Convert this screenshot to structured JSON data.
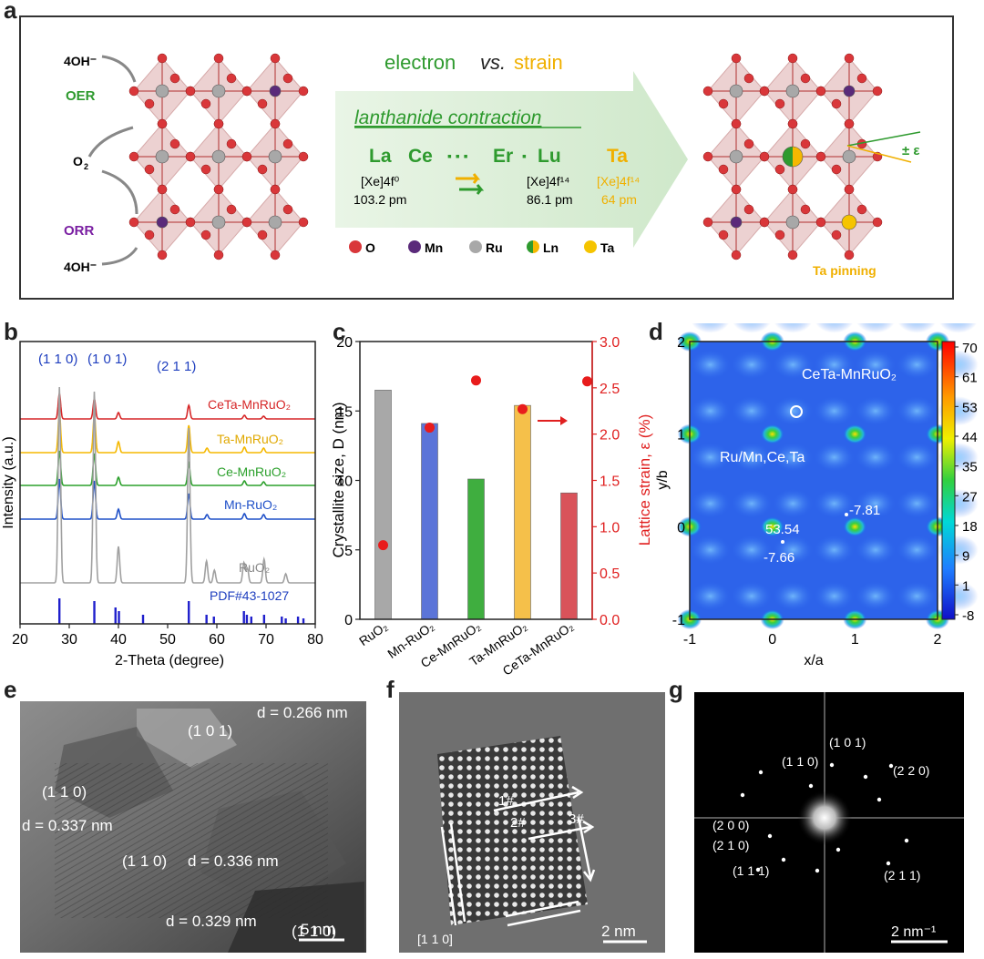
{
  "panel_labels": {
    "a": "a",
    "b": "b",
    "c": "c",
    "d": "d",
    "e": "e",
    "f": "f",
    "g": "g"
  },
  "panel_a": {
    "left_labels": {
      "oh_top": "4OH⁻",
      "oer": "OER",
      "o2": "O",
      "o2_sub": "2",
      "orr": "ORR",
      "oh_bottom": "4OH⁻"
    },
    "title_electron": "electron",
    "title_vs": "vs.",
    "title_strain": "strain",
    "contraction": "lanthanide contraction",
    "elements": {
      "la": "La",
      "ce": "Ce",
      "dots": "▪ ▪ ▪",
      "er": "Er",
      "dot2": "▪",
      "lu": "Lu",
      "ta": "Ta"
    },
    "config_la": "[Xe]4f⁰",
    "radius_la": "103.2 pm",
    "config_lu": "[Xe]4f¹⁴",
    "radius_lu": "86.1 pm",
    "config_ta": "[Xe]4f¹⁴",
    "radius_ta": "64 pm",
    "legend": [
      "O",
      "Mn",
      "Ru",
      "Ln",
      "Ta"
    ],
    "strain_label": "± ε",
    "pinning": "Ta pinning",
    "colors": {
      "green": "#2e9a2e",
      "yellow": "#f5b800",
      "purple": "#7a1fa2",
      "red_atom": "#d9373a",
      "arrow_bg": "#dcefd8"
    }
  },
  "panel_b": {
    "xlabel": "2-Theta (degree)",
    "ylabel": "Intensity (a.u.)",
    "xticks": [
      "20",
      "30",
      "40",
      "50",
      "60",
      "70",
      "80"
    ],
    "peaks": [
      "(1 1 0)",
      "(1 0 1)",
      "(2 1 1)"
    ],
    "traces": [
      {
        "name": "CeTa-MnRuO₂",
        "color": "#d62728"
      },
      {
        "name": "Ta-MnRuO₂",
        "color": "#f5b800"
      },
      {
        "name": "Ce-MnRuO₂",
        "color": "#2ca02c"
      },
      {
        "name": "Mn-RuO₂",
        "color": "#1f50c8"
      },
      {
        "name": "RuO₂",
        "color": "#a0a0a0"
      }
    ],
    "pdf_label": "PDF#43-1027",
    "pdf_positions": [
      28.0,
      35.1,
      39.4,
      40.1,
      45.0,
      54.3,
      57.9,
      59.4,
      65.5,
      66.1,
      67.0,
      69.6,
      73.2,
      74.0,
      76.5,
      77.6
    ]
  },
  "chart_data": {
    "type": "bar",
    "categories": [
      "RuO₂",
      "Mn-RuO₂",
      "Ce-MnRuO₂",
      "Ta-MnRuO₂",
      "CeTa-MnRuO₂"
    ],
    "series": [
      {
        "name": "Crystallite size",
        "values": [
          16.5,
          14.1,
          10.1,
          15.4,
          9.1
        ]
      },
      {
        "name": "Lattice strain",
        "values": [
          0.8,
          2.07,
          2.58,
          2.27,
          2.57
        ]
      }
    ],
    "ylabel": "Crystallite size, D (nm)",
    "y2label": "Lattice strain, ε (%)",
    "ylim": [
      0,
      20
    ],
    "y2lim": [
      0,
      3.0
    ],
    "yticks": [
      "0",
      "5",
      "10",
      "15",
      "20"
    ],
    "y2ticks": [
      "0.0",
      "0.5",
      "1.0",
      "1.5",
      "2.0",
      "2.5",
      "3.0"
    ],
    "bar_colors": [
      "#a8a8a8",
      "#5b74d8",
      "#3fae3f",
      "#f5c04a",
      "#d9535a"
    ]
  },
  "panel_d": {
    "xlabel": "x/a",
    "ylabel": "y/b",
    "xticks": [
      "-1",
      "0",
      "1",
      "2"
    ],
    "yticks": [
      "-1",
      "0",
      "1",
      "2"
    ],
    "title": "CeTa-MnRuO₂",
    "o_label": "O",
    "site_label": "Ru/Mn,Ce,Ta",
    "values": [
      "53.54",
      "-7.81",
      "-7.66"
    ],
    "colorbar": [
      "70",
      "61",
      "53",
      "44",
      "35",
      "27",
      "18",
      "9",
      "1",
      "-8"
    ]
  },
  "panel_e": {
    "labels": [
      "d = 0.266 nm",
      "(1 0 1)",
      "(1 1 0)",
      "d = 0.337 nm",
      "(1 1 0)",
      "d = 0.336 nm",
      "d = 0.329 nm",
      "(1 1 0)"
    ],
    "scale": "5 nm"
  },
  "panel_f": {
    "labels": [
      "1#",
      "2#",
      "3#",
      "[1 1 0]"
    ],
    "scale": "2 nm"
  },
  "panel_g": {
    "labels": [
      "(1 0 1)",
      "(1 1 0)",
      "(2 2 0)",
      "(2 0 0)",
      "(2 1 0)",
      "(1 1 1)",
      "(2 1 1)"
    ],
    "scale": "2 nm⁻¹"
  }
}
